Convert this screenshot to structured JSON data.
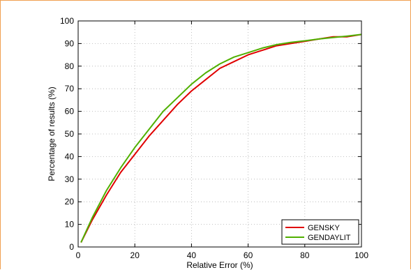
{
  "chart_data": {
    "type": "line",
    "title": "",
    "xlabel": "Relative Error (%)",
    "ylabel": "Percentage of results (%)",
    "xlim": [
      0,
      100
    ],
    "ylim": [
      0,
      100
    ],
    "xticks": [
      0,
      20,
      40,
      60,
      80,
      100
    ],
    "yticks": [
      0,
      10,
      20,
      30,
      40,
      50,
      60,
      70,
      80,
      90,
      100
    ],
    "grid": true,
    "legend_position": "bottom-right",
    "series": [
      {
        "name": "GENSKY",
        "color": "#e00000",
        "x": [
          1,
          5,
          10,
          15,
          20,
          25,
          30,
          35,
          40,
          45,
          50,
          55,
          60,
          65,
          70,
          75,
          80,
          85,
          90,
          95,
          100
        ],
        "y": [
          2,
          12,
          23,
          33,
          41,
          49,
          56,
          63,
          69,
          74,
          79,
          82,
          85,
          87,
          89,
          90,
          91,
          92,
          93,
          93,
          94
        ]
      },
      {
        "name": "GENDAYLIT",
        "color": "#50b000",
        "x": [
          1,
          5,
          10,
          15,
          20,
          25,
          30,
          35,
          40,
          45,
          50,
          55,
          60,
          65,
          70,
          75,
          80,
          85,
          90,
          95,
          100
        ],
        "y": [
          2,
          13,
          25,
          35,
          44,
          52,
          60,
          66,
          72,
          77,
          81,
          84,
          86,
          88,
          89.5,
          90.5,
          91.2,
          92,
          92.7,
          93.3,
          94
        ]
      }
    ]
  }
}
